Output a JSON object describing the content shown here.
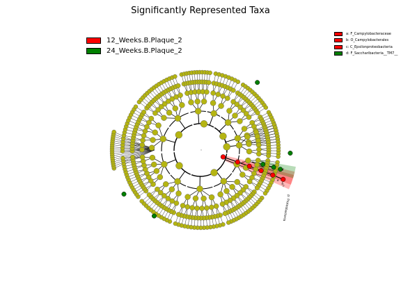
{
  "chart_data": {
    "type": "cladogram",
    "title": "Significantly Represented Taxa",
    "legend": [
      {
        "name": "12_Weeks.B.Plaque_2",
        "color": "#ff0000"
      },
      {
        "name": "24_Weeks.B.Plaque_2",
        "color": "#008000"
      }
    ],
    "clade_legend": [
      {
        "label": "a: F_Campylobacteraceae",
        "color": "#ff0000"
      },
      {
        "label": "b: O_Campylobacterales",
        "color": "#ff0000"
      },
      {
        "label": "c: C_Epsilonproteobacteria",
        "color": "#ff0000"
      },
      {
        "label": "d: F_Saccharibacteria__TM7__",
        "color": "#008000"
      }
    ],
    "clade_annotations": [
      {
        "label": "a",
        "color": "#ff0000"
      },
      {
        "label": "b",
        "color": "#ff0000"
      },
      {
        "label": "c",
        "color": "#ff0000"
      },
      {
        "label": "d",
        "color": "#008000"
      },
      {
        "label": "p: Proteobacteria",
        "color": "#ff0000"
      }
    ],
    "default_node_color": "#b5b512"
  }
}
